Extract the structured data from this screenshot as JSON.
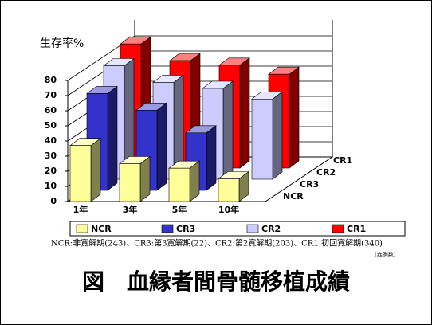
{
  "chart_data": {
    "type": "bar3d",
    "ylabel": "生存率%",
    "categories": [
      "1年",
      "3年",
      "5年",
      "10年"
    ],
    "series": [
      {
        "name": "NCR",
        "color": "#ffff99",
        "values": [
          37,
          25,
          22,
          15
        ]
      },
      {
        "name": "CR3",
        "color": "#3333cc",
        "values": [
          64,
          53,
          38,
          null
        ]
      },
      {
        "name": "CR2",
        "color": "#ccccff",
        "values": [
          75,
          64,
          60,
          53
        ]
      },
      {
        "name": "CR1",
        "color": "#ff0000",
        "values": [
          82,
          71,
          68,
          62
        ]
      }
    ],
    "ylim": [
      0,
      80
    ],
    "yticks": [
      0,
      10,
      20,
      30,
      40,
      50,
      60,
      70,
      80
    ],
    "grid": true,
    "footnote": "NCR:非寛解期(243)、CR3:第3寛解期(22)、CR2:第2寛解期(203)、CR1:初回寛解期(340)",
    "footnote_unit": "(症例数)",
    "caption": "図　血縁者間骨髄移植成績"
  }
}
